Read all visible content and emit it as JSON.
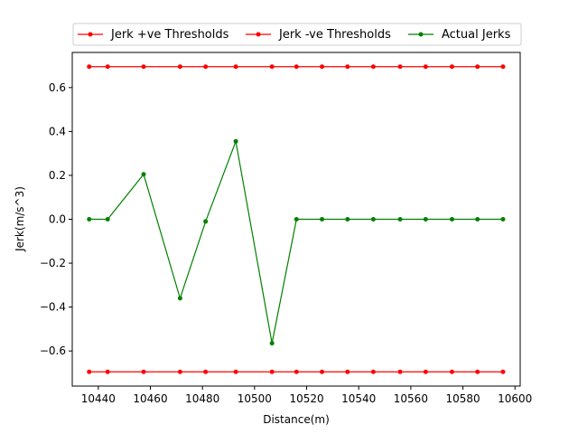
{
  "chart_data": {
    "type": "line",
    "title": "",
    "xlabel": "Distance(m)",
    "ylabel": "Jerk(m/s^3)",
    "xlim": [
      10430,
      10602
    ],
    "ylim": [
      -0.76,
      0.76
    ],
    "xticks": [
      10440,
      10460,
      10480,
      10500,
      10520,
      10540,
      10560,
      10580,
      10600
    ],
    "yticks": [
      -0.6,
      -0.4,
      -0.2,
      0.0,
      0.2,
      0.4,
      0.6
    ],
    "xtick_labels": [
      "10440",
      "10460",
      "10480",
      "10500",
      "10520",
      "10540",
      "10560",
      "10580",
      "10600"
    ],
    "ytick_labels": [
      "−0.6",
      "−0.4",
      "−0.2",
      "0.0",
      "0.2",
      "0.4",
      "0.6"
    ],
    "grid": false,
    "legend_position": "top-center",
    "x": [
      10436.5,
      10443.6,
      10457.4,
      10471.4,
      10481.2,
      10492.8,
      10506.7,
      10516.1,
      10525.9,
      10535.7,
      10545.6,
      10555.9,
      10565.7,
      10575.8,
      10585.6,
      10595.4
    ],
    "series": [
      {
        "name": "Jerk +ve Thresholds",
        "color": "#ff0000",
        "values": [
          0.695,
          0.695,
          0.695,
          0.695,
          0.695,
          0.695,
          0.695,
          0.695,
          0.695,
          0.695,
          0.695,
          0.695,
          0.695,
          0.695,
          0.695,
          0.695
        ]
      },
      {
        "name": "Jerk -ve Thresholds",
        "color": "#ff0000",
        "values": [
          -0.695,
          -0.695,
          -0.695,
          -0.695,
          -0.695,
          -0.695,
          -0.695,
          -0.695,
          -0.695,
          -0.695,
          -0.695,
          -0.695,
          -0.695,
          -0.695,
          -0.695,
          -0.695
        ]
      },
      {
        "name": "Actual Jerks",
        "color": "#008000",
        "values": [
          0.0,
          0.0,
          0.205,
          -0.36,
          -0.01,
          0.355,
          -0.565,
          0.0,
          0.0,
          0.0,
          0.0,
          0.0,
          0.0,
          0.0,
          0.0,
          0.0
        ]
      }
    ]
  }
}
